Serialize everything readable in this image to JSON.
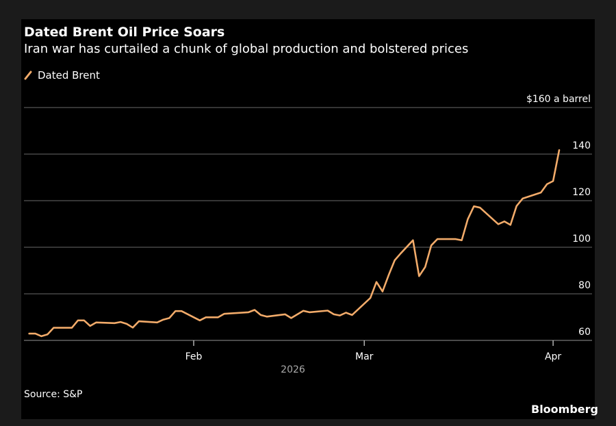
{
  "header": {
    "title": "Dated Brent Oil Price Soars",
    "subtitle": "Iran war has curtailed a chunk of global production and bolstered prices"
  },
  "footer": {
    "source": "Source: S&P",
    "logo": "Bloomberg"
  },
  "colors": {
    "background": "#000000",
    "line": "#f2ab6a",
    "grid": "#555555",
    "text": "#ffffff"
  },
  "chart_data": {
    "type": "line",
    "title": "Dated Brent Oil Price Soars",
    "subtitle": "Iran war has curtailed a chunk of global production and bolstered prices",
    "legend": {
      "placement": "top-left",
      "entries": [
        "Dated Brent"
      ]
    },
    "y_axis": {
      "position": "right",
      "range": [
        60,
        160
      ],
      "ticks": [
        60,
        80,
        100,
        120,
        140,
        160
      ],
      "tick_labels": [
        "60",
        "80",
        "100",
        "120",
        "140",
        "$160 a barrel"
      ],
      "grid": true
    },
    "x_axis": {
      "range": [
        "2026-01-04",
        "2026-04-04"
      ],
      "ticks": [
        "2026-02-01",
        "2026-03-01",
        "2026-04-01"
      ],
      "tick_labels": [
        "Feb",
        "Mar",
        "Apr"
      ],
      "year_label": "2026"
    },
    "series": [
      {
        "name": "Dated Brent",
        "x": [
          "2026-01-05",
          "2026-01-06",
          "2026-01-07",
          "2026-01-08",
          "2026-01-09",
          "2026-01-12",
          "2026-01-13",
          "2026-01-14",
          "2026-01-15",
          "2026-01-16",
          "2026-01-19",
          "2026-01-20",
          "2026-01-21",
          "2026-01-22",
          "2026-01-23",
          "2026-01-26",
          "2026-01-27",
          "2026-01-28",
          "2026-01-29",
          "2026-01-30",
          "2026-02-02",
          "2026-02-03",
          "2026-02-05",
          "2026-02-06",
          "2026-02-10",
          "2026-02-11",
          "2026-02-12",
          "2026-02-13",
          "2026-02-16",
          "2026-02-17",
          "2026-02-19",
          "2026-02-20",
          "2026-02-23",
          "2026-02-24",
          "2026-02-25",
          "2026-02-26",
          "2026-02-27",
          "2026-03-02",
          "2026-03-03",
          "2026-03-04",
          "2026-03-05",
          "2026-03-06",
          "2026-03-07",
          "2026-03-09",
          "2026-03-10",
          "2026-03-11",
          "2026-03-12",
          "2026-03-13",
          "2026-03-16",
          "2026-03-17",
          "2026-03-18",
          "2026-03-19",
          "2026-03-20",
          "2026-03-23",
          "2026-03-24",
          "2026-03-25",
          "2026-03-26",
          "2026-03-27",
          "2026-03-30",
          "2026-03-31",
          "2026-04-01",
          "2026-04-02"
        ],
        "values": [
          62.9,
          62.9,
          61.8,
          62.6,
          65.4,
          65.4,
          68.6,
          68.6,
          66.2,
          67.7,
          67.4,
          67.9,
          67.1,
          65.5,
          68.2,
          67.7,
          68.9,
          69.6,
          72.6,
          72.6,
          68.6,
          69.9,
          69.9,
          71.4,
          72.1,
          73.1,
          70.9,
          70.2,
          71.2,
          69.6,
          72.7,
          72.1,
          72.8,
          71.2,
          70.7,
          71.9,
          70.9,
          78.2,
          85.1,
          81.0,
          88.0,
          94.4,
          97.4,
          103.0,
          87.6,
          91.5,
          100.8,
          103.5,
          103.5,
          103.0,
          112.1,
          117.6,
          117.0,
          109.9,
          111.1,
          109.6,
          117.7,
          120.9,
          123.5,
          127.1,
          128.4,
          141.7
        ]
      }
    ]
  }
}
